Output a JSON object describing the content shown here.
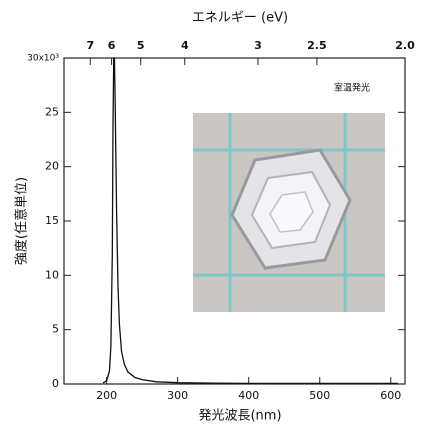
{
  "chart_data": {
    "type": "line",
    "title_top": "エネルギー (eV)",
    "x_label": "発光波長(nm)",
    "y_label": "強度(任意単位)",
    "annotation": "室温発光",
    "x": [
      195,
      200,
      204,
      206,
      208,
      209,
      210,
      211,
      212,
      214,
      216,
      218,
      221,
      225,
      230,
      240,
      250,
      270,
      300,
      350,
      400,
      500,
      610
    ],
    "series": [
      {
        "name": "室温発光",
        "color": "#111111",
        "values": [
          0.1,
          0.3,
          1.2,
          3.5,
          12,
          24,
          30,
          30,
          26,
          16,
          9,
          5.5,
          3,
          1.8,
          1.1,
          0.6,
          0.4,
          0.2,
          0.12,
          0.08,
          0.06,
          0.05,
          0.05
        ]
      }
    ],
    "xlim": [
      140,
      620
    ],
    "xticks": [
      200,
      300,
      400,
      500,
      600
    ],
    "x2ticks": [
      {
        "value": 177,
        "label": "7"
      },
      {
        "value": 207,
        "label": "6"
      },
      {
        "value": 248,
        "label": "5"
      },
      {
        "value": 310,
        "label": "4"
      },
      {
        "value": 413,
        "label": "3"
      },
      {
        "value": 496,
        "label": "2.5"
      },
      {
        "value": 620,
        "label": "2.0"
      }
    ],
    "ylim": [
      0,
      30
    ],
    "yticks": [
      0,
      5,
      10,
      15,
      20,
      25,
      {
        "value": 30,
        "label": "30x10³"
      }
    ]
  }
}
